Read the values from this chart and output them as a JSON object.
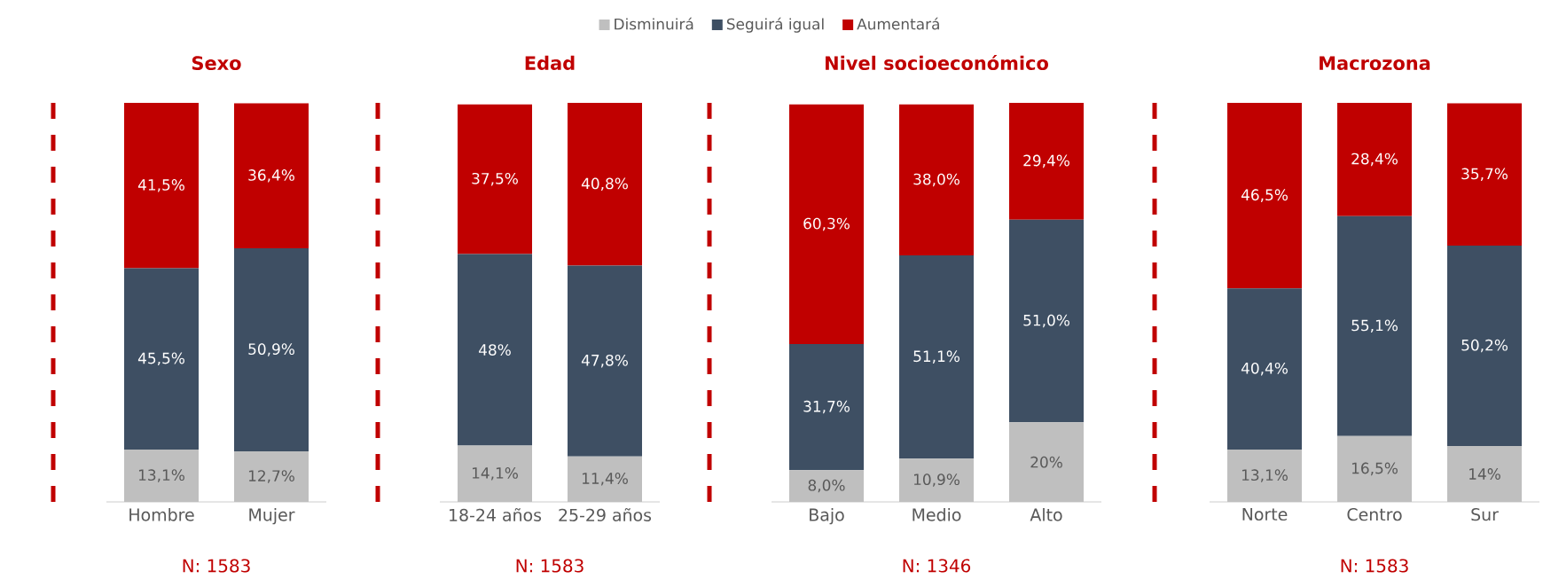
{
  "chart_data": [
    {
      "type": "bar",
      "stacked": true,
      "title": "Sexo",
      "categories": [
        "Hombre",
        "Mujer"
      ],
      "tick_labels": "x",
      "legend": "top",
      "annotations": [
        "N: 1583"
      ],
      "series": [
        {
          "name": "Disminuirá",
          "color": "#bfbfbf",
          "values": [
            13.1,
            12.7
          ],
          "value_labels": [
            "13,1%",
            "12,7%"
          ]
        },
        {
          "name": "Seguirá igual",
          "color": "#3e4f63",
          "values": [
            45.5,
            50.9
          ],
          "value_labels": [
            "45,5%",
            "50,9%"
          ]
        },
        {
          "name": "Aumentará",
          "color": "#c00000",
          "values": [
            41.5,
            36.4
          ],
          "value_labels": [
            "41,5%",
            "36,4%"
          ]
        }
      ]
    },
    {
      "type": "bar",
      "stacked": true,
      "title": "Edad",
      "categories": [
        "18-24 años",
        "25-29 años"
      ],
      "tick_labels": "x",
      "annotations": [
        "N: 1583"
      ],
      "series": [
        {
          "color": "#bfbfbf",
          "values": [
            14.1,
            11.4
          ],
          "value_labels": [
            "14,1%",
            "11,4%"
          ]
        },
        {
          "color": "#3e4f63",
          "values": [
            48,
            47.8
          ],
          "value_labels": [
            "48%",
            "47,8%"
          ]
        },
        {
          "color": "#c00000",
          "values": [
            37.5,
            40.8
          ],
          "value_labels": [
            "37,5%",
            "40,8%"
          ]
        }
      ]
    },
    {
      "type": "bar",
      "stacked": true,
      "title": "Nivel socioeconómico",
      "categories": [
        "Bajo",
        "Medio",
        "Alto"
      ],
      "tick_labels": "x",
      "annotations": [
        "N: 1346"
      ],
      "series": [
        {
          "color": "#bfbfbf",
          "values": [
            8.0,
            10.9,
            20
          ],
          "value_labels": [
            "8,0%",
            "10,9%",
            "20%"
          ]
        },
        {
          "color": "#3e4f63",
          "values": [
            31.7,
            51.1,
            51.0
          ],
          "value_labels": [
            "31,7%",
            "51,1%",
            "51,0%"
          ]
        },
        {
          "color": "#c00000",
          "values": [
            60.3,
            38.0,
            29.4
          ],
          "value_labels": [
            "60,3%",
            "38,0%",
            "29,4%"
          ]
        }
      ]
    },
    {
      "type": "bar",
      "stacked": true,
      "title": "Macrozona",
      "categories": [
        "Norte",
        "Centro",
        "Sur"
      ],
      "tick_labels": "x",
      "annotations": [
        "N: 1583"
      ],
      "series": [
        {
          "color": "#bfbfbf",
          "values": [
            13.1,
            16.5,
            14
          ],
          "value_labels": [
            "13,1%",
            "16,5%",
            "14%"
          ]
        },
        {
          "color": "#3e4f63",
          "values": [
            40.4,
            55.1,
            50.2
          ],
          "value_labels": [
            "40,4%",
            "55,1%",
            "50,2%"
          ]
        },
        {
          "color": "#c00000",
          "values": [
            46.5,
            28.4,
            35.7
          ],
          "value_labels": [
            "46,5%",
            "28,4%",
            "35,7%"
          ]
        }
      ]
    }
  ]
}
